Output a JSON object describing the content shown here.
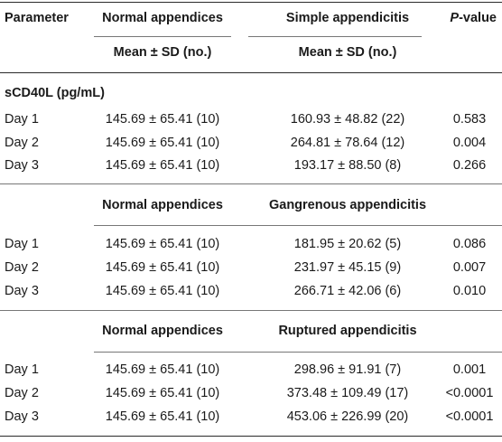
{
  "header": {
    "parameter": "Parameter",
    "group_a": "Normal appendices",
    "group_b": "Simple appendicitis",
    "p_italic": "P",
    "p_suffix": "-value",
    "mean_sd_a": "Mean ± SD (no.)",
    "mean_sd_b": "Mean ± SD (no.)"
  },
  "section_title": "sCD40L (pg/mL)",
  "sections": [
    {
      "rows": [
        {
          "day": "Day 1",
          "normal": "145.69 ± 65.41 (10)",
          "other": "160.93 ± 48.82 (22)",
          "p": "0.583"
        },
        {
          "day": "Day 2",
          "normal": "145.69 ± 65.41 (10)",
          "other": "264.81 ± 78.64 (12)",
          "p": "0.004"
        },
        {
          "day": "Day 3",
          "normal": "145.69 ± 65.41 (10)",
          "other": "193.17 ± 88.50 (8)",
          "p": "0.266"
        }
      ]
    },
    {
      "group_a": "Normal appendices",
      "group_b": "Gangrenous appendicitis",
      "rows": [
        {
          "day": "Day 1",
          "normal": "145.69 ± 65.41 (10)",
          "other": "181.95 ± 20.62 (5)",
          "p": "0.086"
        },
        {
          "day": "Day 2",
          "normal": "145.69 ± 65.41 (10)",
          "other": "231.97 ± 45.15 (9)",
          "p": "0.007"
        },
        {
          "day": "Day 3",
          "normal": "145.69 ± 65.41 (10)",
          "other": "266.71 ± 42.06 (6)",
          "p": "0.010"
        }
      ]
    },
    {
      "group_a": "Normal appendices",
      "group_b": "Ruptured appendicitis",
      "rows": [
        {
          "day": "Day 1",
          "normal": "145.69 ± 65.41 (10)",
          "other": "298.96 ± 91.91 (7)",
          "p": "0.001"
        },
        {
          "day": "Day 2",
          "normal": "145.69 ± 65.41 (10)",
          "other": "373.48 ± 109.49 (17)",
          "p": "<0.0001"
        },
        {
          "day": "Day 3",
          "normal": "145.69 ± 65.41 (10)",
          "other": "453.06 ± 226.99 (20)",
          "p": "<0.0001"
        }
      ]
    }
  ]
}
